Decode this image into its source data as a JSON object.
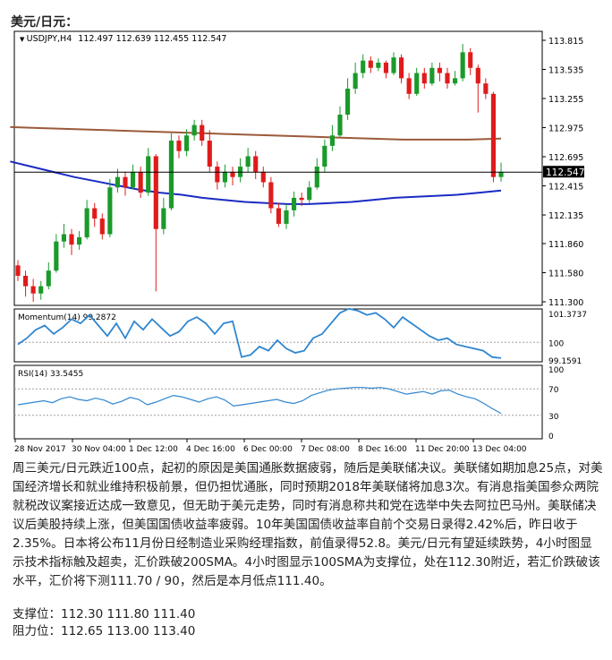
{
  "heading": "美元/日元：",
  "chart_data": {
    "type": "candlestick",
    "symbol_header": "USDJPY,H4",
    "ohlc_header": "112.497 112.639 112.455 112.547",
    "current_price_label": "112.547",
    "current_price": 112.547,
    "y_ticks": [
      "113.815",
      "113.535",
      "113.255",
      "112.975",
      "112.695",
      "112.415",
      "112.135",
      "111.860",
      "111.580",
      "111.300"
    ],
    "y_range": [
      111.3,
      113.815
    ],
    "x_ticks": [
      "28 Nov 2017",
      "30 Nov 04:00",
      "1 Dec 12:00",
      "4 Dec 16:00",
      "6 Dec 00:00",
      "7 Dec 08:00",
      "8 Dec 16:00",
      "11 Dec 20:00",
      "13 Dec 04:00"
    ],
    "candles": [
      [
        111.65,
        111.55,
        111.7,
        111.5
      ],
      [
        111.55,
        111.45,
        111.6,
        111.35
      ],
      [
        111.45,
        111.38,
        111.52,
        111.3
      ],
      [
        111.38,
        111.45,
        111.5,
        111.32
      ],
      [
        111.45,
        111.6,
        111.68,
        111.42
      ],
      [
        111.6,
        111.88,
        111.95,
        111.58
      ],
      [
        111.88,
        111.95,
        112.05,
        111.82
      ],
      [
        111.95,
        111.85,
        112.0,
        111.75
      ],
      [
        111.85,
        111.92,
        111.98,
        111.8
      ],
      [
        111.92,
        112.2,
        112.28,
        111.9
      ],
      [
        112.2,
        112.1,
        112.25,
        112.02
      ],
      [
        112.1,
        111.95,
        112.15,
        111.9
      ],
      [
        111.95,
        112.4,
        112.48,
        111.92
      ],
      [
        112.4,
        112.5,
        112.58,
        112.35
      ],
      [
        112.5,
        112.4,
        112.55,
        112.32
      ],
      [
        112.4,
        112.55,
        112.62,
        112.38
      ],
      [
        112.55,
        112.35,
        112.6,
        112.3
      ],
      [
        112.35,
        112.7,
        112.78,
        112.32
      ],
      [
        112.7,
        112.0,
        112.72,
        111.4
      ],
      [
        112.0,
        112.2,
        112.3,
        111.95
      ],
      [
        112.2,
        112.85,
        112.92,
        112.18
      ],
      [
        112.85,
        112.75,
        112.9,
        112.68
      ],
      [
        112.75,
        112.9,
        112.96,
        112.7
      ],
      [
        112.9,
        113.0,
        113.05,
        112.85
      ],
      [
        113.0,
        112.85,
        113.05,
        112.8
      ],
      [
        112.85,
        112.6,
        112.95,
        112.55
      ],
      [
        112.6,
        112.45,
        112.65,
        112.38
      ],
      [
        112.45,
        112.55,
        112.62,
        112.4
      ],
      [
        112.55,
        112.5,
        112.6,
        112.42
      ],
      [
        112.5,
        112.6,
        112.68,
        112.45
      ],
      [
        112.6,
        112.7,
        112.78,
        112.55
      ],
      [
        112.7,
        112.55,
        112.75,
        112.48
      ],
      [
        112.55,
        112.45,
        112.6,
        112.4
      ],
      [
        112.45,
        112.2,
        112.5,
        112.15
      ],
      [
        112.2,
        112.05,
        112.25,
        112.02
      ],
      [
        112.05,
        112.18,
        112.24,
        112.0
      ],
      [
        112.18,
        112.3,
        112.36,
        112.12
      ],
      [
        112.3,
        112.28,
        112.35,
        112.22
      ],
      [
        112.28,
        112.4,
        112.46,
        112.25
      ],
      [
        112.4,
        112.6,
        112.68,
        112.38
      ],
      [
        112.6,
        112.8,
        112.86,
        112.55
      ],
      [
        112.8,
        112.9,
        113.0,
        112.75
      ],
      [
        112.9,
        113.1,
        113.18,
        112.88
      ],
      [
        113.1,
        113.35,
        113.45,
        113.05
      ],
      [
        113.35,
        113.5,
        113.6,
        113.3
      ],
      [
        113.5,
        113.62,
        113.68,
        113.45
      ],
      [
        113.62,
        113.55,
        113.66,
        113.5
      ],
      [
        113.55,
        113.6,
        113.64,
        113.52
      ],
      [
        113.6,
        113.5,
        113.62,
        113.45
      ],
      [
        113.5,
        113.65,
        113.7,
        113.48
      ],
      [
        113.65,
        113.45,
        113.68,
        113.4
      ],
      [
        113.45,
        113.3,
        113.5,
        113.25
      ],
      [
        113.3,
        113.5,
        113.55,
        113.28
      ],
      [
        113.5,
        113.4,
        113.55,
        113.35
      ],
      [
        113.4,
        113.55,
        113.6,
        113.38
      ],
      [
        113.55,
        113.5,
        113.6,
        113.42
      ],
      [
        113.5,
        113.4,
        113.55,
        113.35
      ],
      [
        113.4,
        113.45,
        113.52,
        113.38
      ],
      [
        113.45,
        113.7,
        113.78,
        113.42
      ],
      [
        113.7,
        113.55,
        113.74,
        113.48
      ],
      [
        113.55,
        113.4,
        113.58,
        113.12
      ],
      [
        113.4,
        113.3,
        113.45,
        113.25
      ],
      [
        113.3,
        112.5,
        113.32,
        112.45
      ],
      [
        112.5,
        112.547,
        112.639,
        112.455
      ]
    ],
    "sma200": [
      112.65,
      112.6,
      112.55,
      112.5,
      112.46,
      112.42,
      112.38,
      112.35,
      112.33,
      112.3,
      112.28,
      112.26,
      112.25,
      112.24,
      112.24,
      112.25,
      112.26,
      112.28,
      112.3,
      112.31,
      112.32,
      112.33,
      112.35,
      112.37
    ],
    "sma100": [
      112.98,
      112.97,
      112.96,
      112.95,
      112.94,
      112.93,
      112.92,
      112.91,
      112.9,
      112.89,
      112.88,
      112.87,
      112.86,
      112.86,
      112.86,
      112.87
    ],
    "momentum_label": "Momentum(14) 99.2872",
    "momentum_ticks": [
      "101.3737",
      "100",
      "99.1591"
    ],
    "momentum": [
      99.9,
      100.2,
      100.6,
      100.8,
      100.4,
      100.7,
      101.1,
      100.9,
      101.3,
      100.8,
      100.3,
      100.9,
      100.2,
      101.0,
      100.6,
      101.1,
      100.7,
      100.3,
      100.5,
      101.0,
      101.2,
      100.9,
      100.4,
      100.9,
      101.0,
      99.3,
      99.4,
      99.8,
      99.6,
      100.1,
      99.7,
      99.5,
      99.6,
      100.2,
      100.4,
      100.9,
      101.4,
      101.6,
      101.5,
      101.3,
      101.4,
      101.1,
      100.7,
      101.2,
      100.9,
      100.6,
      100.3,
      100.1,
      100.2,
      99.9,
      99.8,
      99.7,
      99.6,
      99.3,
      99.25
    ],
    "rsi_label": "RSI(14) 33.5455",
    "rsi_ticks": [
      "100",
      "70",
      "30",
      "0"
    ],
    "rsi": [
      46,
      48,
      50,
      52,
      49,
      55,
      58,
      54,
      52,
      56,
      53,
      47,
      51,
      57,
      54,
      46,
      50,
      55,
      60,
      58,
      54,
      50,
      55,
      58,
      53,
      44,
      46,
      48,
      50,
      52,
      54,
      50,
      48,
      52,
      60,
      64,
      68,
      70,
      71,
      72,
      72,
      71,
      72,
      70,
      66,
      62,
      64,
      66,
      62,
      67,
      68,
      62,
      58,
      55,
      48,
      40,
      33
    ]
  },
  "body_text": "周三美元/日元跌近100点，起初的原因是美国通胀数据疲弱，随后是美联储决议。美联储如期加息25点，对美国经济增长和就业维持积极前景，但仍担忧通胀，同时预期2018年美联储将加息3次。有消息指美国参众两院就税改议案接近达成一致意见，但无助于美元走势，同时有消息称共和党在选举中失去阿拉巴马州。美联储决议后美股持续上涨，但美国国债收益率疲弱。10年美国国债收益率自前个交易日录得2.42%后，昨日收于2.35%。日本将公布11月份日经制造业采购经理指数，前值录得52.8。美元/日元有望延续跌势，4小时图显示技术指标触及超卖，汇价跌破200SMA。4小时图显示100SMA为支撑位，处在112.30附近，若汇价跌破该水平，汇价将下测111.70 / 90，然后是本月低点111.40。",
  "support_label": "支撑位：112.30 111.80 111.40",
  "resistance_label": "阻力位：112.65 113.00 113.40",
  "colors": {
    "bull": "#1a9a2a",
    "bear": "#e01b1b",
    "sma_blue": "#1a2bc4",
    "sma_brown": "#9b5a3a",
    "indicator": "#2f86d0",
    "axis": "#000000",
    "dotted": "#a0a0a0"
  }
}
